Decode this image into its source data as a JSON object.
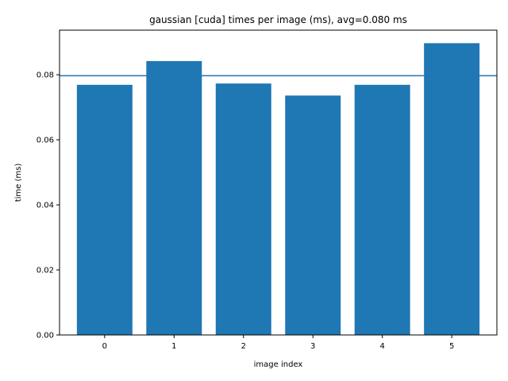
{
  "chart_data": {
    "type": "bar",
    "title": "gaussian [cuda] times per image (ms), avg=0.080 ms",
    "xlabel": "image index",
    "ylabel": "time (ms)",
    "categories": [
      "0",
      "1",
      "2",
      "3",
      "4",
      "5"
    ],
    "values": [
      0.0769,
      0.0842,
      0.0773,
      0.0736,
      0.0769,
      0.0897
    ],
    "average": 0.0797,
    "ylim": [
      0,
      0.0937
    ],
    "xlim": [
      -0.65,
      5.65
    ],
    "yticks": [
      0.0,
      0.02,
      0.04,
      0.06,
      0.08
    ],
    "ytick_labels": [
      "0.00",
      "0.02",
      "0.04",
      "0.06",
      "0.08"
    ],
    "grid": false,
    "bar_color": "#1f77b4",
    "avg_line_color": "#1f77b4"
  }
}
